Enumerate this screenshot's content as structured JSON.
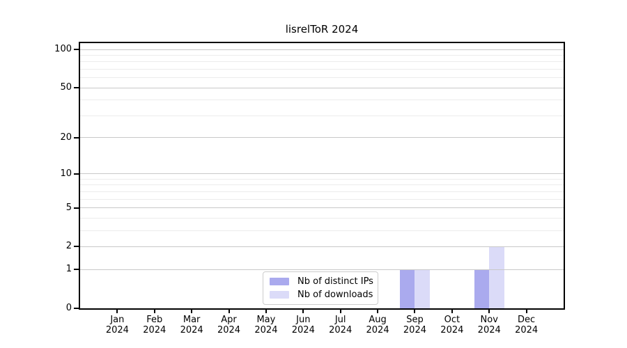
{
  "chart_data": {
    "type": "bar",
    "title": "lisrelToR 2024",
    "categories": [
      "Jan 2024",
      "Feb 2024",
      "Mar 2024",
      "Apr 2024",
      "May 2024",
      "Jun 2024",
      "Jul 2024",
      "Aug 2024",
      "Sep 2024",
      "Oct 2024",
      "Nov 2024",
      "Dec 2024"
    ],
    "series": [
      {
        "name": "Nb of distinct IPs",
        "color": "#aaaaee",
        "values": [
          0,
          0,
          0,
          0,
          0,
          0,
          0,
          0,
          1,
          0,
          1,
          0
        ]
      },
      {
        "name": "Nb of downloads",
        "color": "#dbdbf8",
        "values": [
          0,
          0,
          0,
          0,
          0,
          0,
          0,
          0,
          1,
          0,
          2,
          0
        ]
      }
    ],
    "xlabel": "",
    "ylabel": "",
    "yscale": "log1p",
    "ylim": [
      0,
      112
    ],
    "yticks": [
      0,
      1,
      2,
      5,
      10,
      20,
      50,
      100
    ],
    "minor_yticks": [
      3,
      4,
      6,
      7,
      8,
      9,
      30,
      40,
      60,
      70,
      80,
      90
    ],
    "grid": true,
    "legend_position": "inside-bottom-center",
    "colors": {
      "axis": "#000000",
      "major_grid": "#c8c8c8",
      "minor_grid": "#ececec",
      "background": "#ffffff",
      "legend_border": "#cccccc",
      "distinct_ips_bar": "#aaaaee",
      "downloads_bar": "#dbdbf8"
    }
  }
}
